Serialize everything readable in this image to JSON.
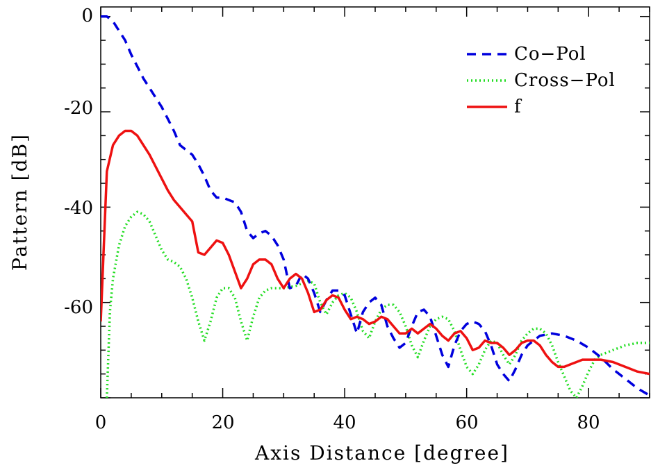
{
  "chart_data": {
    "type": "line",
    "xlabel": "Axis Distance [degree]",
    "ylabel": "Pattern [dB]",
    "xlim": [
      0,
      90
    ],
    "ylim": [
      -80,
      2
    ],
    "xticks": [
      0,
      20,
      40,
      60,
      80
    ],
    "yticks": [
      0,
      -20,
      -40,
      -60
    ],
    "grid": false,
    "legend_position": "top-right",
    "series": [
      {
        "name": "Co−Pol",
        "color": "#0000dd",
        "style": "dashed",
        "x": [
          0,
          1,
          2,
          3,
          4,
          5,
          6,
          7,
          8,
          9,
          10,
          11,
          12,
          13,
          14,
          15,
          16,
          17,
          18,
          19,
          20,
          21,
          22,
          23,
          24,
          25,
          26,
          27,
          28,
          29,
          30,
          31,
          32,
          33,
          34,
          35,
          36,
          37,
          38,
          39,
          40,
          41,
          42,
          43,
          44,
          45,
          46,
          47,
          48,
          49,
          50,
          51,
          52,
          53,
          54,
          55,
          56,
          57,
          58,
          59,
          60,
          61,
          62,
          63,
          64,
          65,
          66,
          67,
          68,
          69,
          70,
          72,
          74,
          76,
          78,
          80,
          82,
          84,
          86,
          88,
          90
        ],
        "y": [
          0,
          0,
          -1,
          -3,
          -5,
          -8,
          -10.5,
          -13,
          -15,
          -17,
          -19,
          -21.5,
          -24,
          -27,
          -28,
          -29,
          -31,
          -33.5,
          -36.5,
          -38,
          -38,
          -38.5,
          -39,
          -41,
          -45,
          -46.5,
          -45.5,
          -45,
          -46,
          -48,
          -51,
          -57,
          -56.5,
          -54,
          -55,
          -58,
          -62,
          -59.5,
          -57.5,
          -57.5,
          -58.5,
          -62.5,
          -66.5,
          -62,
          -60,
          -59,
          -60.5,
          -65,
          -67.5,
          -69.5,
          -68.5,
          -65,
          -62,
          -61.5,
          -63,
          -67,
          -71,
          -73.5,
          -69,
          -66,
          -64.5,
          -64,
          -64.5,
          -66,
          -69,
          -73,
          -75,
          -76.5,
          -74,
          -71,
          -69,
          -67,
          -66.5,
          -67,
          -68,
          -69.5,
          -71.5,
          -74,
          -76,
          -78,
          -79.5
        ]
      },
      {
        "name": "Cross−Pol",
        "color": "#22dd22",
        "style": "dotted",
        "x": [
          1,
          1.5,
          2,
          3,
          4,
          5,
          6,
          7,
          8,
          9,
          10,
          11,
          12,
          13,
          14,
          15,
          16,
          17,
          18,
          19,
          20,
          21,
          22,
          23,
          24,
          25,
          26,
          27,
          28,
          30,
          32,
          34,
          35,
          36,
          37,
          38,
          39,
          40,
          41,
          42,
          43,
          44,
          45,
          46,
          47,
          48,
          49,
          50,
          51,
          52,
          53,
          54,
          55,
          56,
          57,
          58,
          59,
          60,
          61,
          62,
          63,
          64,
          65,
          66,
          67,
          68,
          69,
          70,
          71,
          72,
          73,
          74,
          75,
          76,
          77,
          78,
          79,
          80,
          81,
          82,
          84,
          86,
          88,
          90
        ],
        "y": [
          -80,
          -62,
          -55,
          -48,
          -44,
          -42,
          -41,
          -41.5,
          -43,
          -46,
          -49,
          -51,
          -51.5,
          -52.5,
          -55,
          -59,
          -64,
          -68,
          -64,
          -59,
          -57,
          -57,
          -59,
          -64,
          -68,
          -63,
          -59,
          -57.5,
          -57,
          -57,
          -56.5,
          -55.5,
          -56,
          -60,
          -62.5,
          -60,
          -58.5,
          -58,
          -59,
          -62,
          -66,
          -67.5,
          -64,
          -61.5,
          -60.5,
          -60.5,
          -62,
          -65,
          -69,
          -71.5,
          -68,
          -65,
          -63.5,
          -63,
          -63.5,
          -66,
          -70,
          -73.5,
          -75,
          -73,
          -70,
          -68,
          -68.5,
          -71,
          -73,
          -71,
          -68,
          -66.5,
          -65.5,
          -65.5,
          -66.5,
          -69,
          -72.5,
          -75.5,
          -78.5,
          -80,
          -77.5,
          -74.5,
          -72,
          -71,
          -70,
          -69,
          -68.5,
          -68.5
        ]
      },
      {
        "name": "f",
        "color": "#ee1111",
        "style": "solid",
        "x": [
          0,
          1,
          2,
          3,
          4,
          5,
          6,
          7,
          8,
          9,
          10,
          11,
          12,
          13,
          14,
          15,
          16,
          17,
          18,
          19,
          20,
          21,
          22,
          23,
          24,
          25,
          26,
          27,
          28,
          29,
          30,
          31,
          32,
          33,
          34,
          35,
          36,
          37,
          38,
          39,
          40,
          41,
          42,
          43,
          44,
          45,
          46,
          47,
          48,
          49,
          50,
          51,
          52,
          53,
          54,
          55,
          56,
          57,
          58,
          59,
          60,
          61,
          62,
          63,
          64,
          65,
          66,
          67,
          68,
          69,
          70,
          71,
          72,
          73,
          74,
          75,
          76,
          77,
          78,
          79,
          80,
          82,
          84,
          86,
          88,
          90
        ],
        "y": [
          -64,
          -32.5,
          -27,
          -25,
          -24,
          -24,
          -25,
          -27,
          -29,
          -31.5,
          -34,
          -36.5,
          -38.5,
          -40,
          -41.5,
          -43,
          -49.5,
          -50,
          -48.5,
          -47,
          -47.5,
          -50,
          -53.5,
          -57,
          -55,
          -52,
          -51,
          -51,
          -52,
          -55,
          -57,
          -55,
          -54,
          -55,
          -58,
          -62,
          -61.5,
          -59.5,
          -58.5,
          -59,
          -61.5,
          -63.5,
          -63,
          -63.5,
          -64.5,
          -64,
          -63,
          -63.5,
          -65,
          -66.5,
          -66.5,
          -65.5,
          -66.5,
          -65.5,
          -64.5,
          -65.5,
          -67,
          -68,
          -66.5,
          -66,
          -67.5,
          -70,
          -69.5,
          -68,
          -68.5,
          -68.5,
          -69.5,
          -71,
          -70,
          -68.5,
          -68,
          -68,
          -69,
          -71,
          -72.5,
          -73.5,
          -73.5,
          -73,
          -72.5,
          -72,
          -72,
          -72,
          -72.5,
          -73.5,
          -74.5,
          -75
        ]
      }
    ]
  }
}
